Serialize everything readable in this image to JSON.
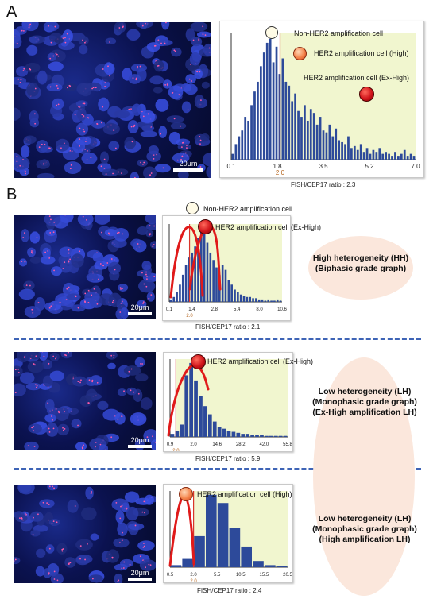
{
  "panel_a": {
    "letter": "A",
    "scale_bar": "20μm",
    "legend": {
      "non_amp": "Non-HER2 amplification cell",
      "high": "HER2 amplification cell (High)",
      "exhigh": "HER2 amplification cell (Ex-High)"
    },
    "ratio_caption": "FISH/CEP17 ratio : 2.3"
  },
  "panel_b": {
    "letter": "B",
    "legend_non_amp": "Non-HER2 amplification cell",
    "legend_exhigh_1": "HER2 amplification cell (Ex-High)",
    "legend_exhigh_2": "HER2 amplification cell (Ex-High)",
    "legend_high_3": "HER2 amplification cell (High)",
    "scale_bar": "20μm",
    "ratio_1": "FISH/CEP17 ratio : 2.1",
    "ratio_2": "FISH/CEP17 ratio : 5.9",
    "ratio_3": "FISH/CEP17 ratio : 2.4",
    "class_hh_line1": "High heterogeneity (HH)",
    "class_hh_line2": "(Biphasic grade graph)",
    "class_lh1_line1": "Low heterogeneity (LH)",
    "class_lh1_line2": "(Monophasic grade graph)",
    "class_lh1_line3": "(Ex-High amplification LH)",
    "class_lh2_line1": "Low heterogeneity (LH)",
    "class_lh2_line2": "(Monophasic grade graph)",
    "class_lh2_line3": "(High amplification LH)"
  },
  "colors": {
    "bar": "#2d4a9a",
    "threshold": "#d9342b",
    "curve": "#e01a1a",
    "shade": "#f1f6cf",
    "divider": "#3e64b6",
    "ellipse": "#fbe7dc"
  },
  "chart_data": [
    {
      "type": "bar",
      "id": "histA",
      "xticks": [
        "0.1",
        "1.8",
        "3.5",
        "5.2",
        "7.0"
      ],
      "threshold_label": "2.0",
      "values": [
        3,
        8,
        12,
        15,
        22,
        20,
        28,
        35,
        40,
        48,
        55,
        60,
        62,
        50,
        58,
        44,
        52,
        40,
        38,
        30,
        34,
        25,
        22,
        28,
        20,
        26,
        24,
        18,
        22,
        15,
        14,
        18,
        12,
        16,
        10,
        9,
        8,
        12,
        6,
        7,
        5,
        8,
        4,
        6,
        3,
        5,
        4,
        6,
        3,
        4,
        3,
        2,
        4,
        2,
        3,
        5,
        2,
        3,
        2
      ]
    },
    {
      "type": "bar",
      "id": "histB1",
      "xticks": [
        "0.1",
        "1.4",
        "2.8",
        "5.4",
        "8.0",
        "10.6"
      ],
      "threshold_label": "2.0",
      "values": [
        2,
        4,
        8,
        14,
        22,
        30,
        36,
        40,
        45,
        52,
        60,
        55,
        48,
        40,
        34,
        28,
        22,
        30,
        26,
        18,
        14,
        10,
        8,
        6,
        5,
        4,
        4,
        3,
        3,
        2,
        2,
        1,
        2,
        1,
        1,
        2,
        1
      ]
    },
    {
      "type": "bar",
      "id": "histB2",
      "xticks": [
        "0.9",
        "2.0",
        "14.6",
        "28.2",
        "42.0",
        "55.8"
      ],
      "threshold_label": "2.0",
      "values": [
        3,
        6,
        12,
        60,
        72,
        55,
        40,
        30,
        22,
        15,
        10,
        8,
        6,
        5,
        4,
        3,
        3,
        2,
        2,
        2,
        1,
        1,
        1,
        1,
        1
      ]
    },
    {
      "type": "bar",
      "id": "histB3",
      "xticks": [
        "0.5",
        "2.0",
        "5.5",
        "10.5",
        "15.5",
        "20.5"
      ],
      "threshold_label": "2.0",
      "values": [
        2,
        8,
        30,
        70,
        62,
        38,
        20,
        6,
        2,
        1
      ]
    }
  ]
}
